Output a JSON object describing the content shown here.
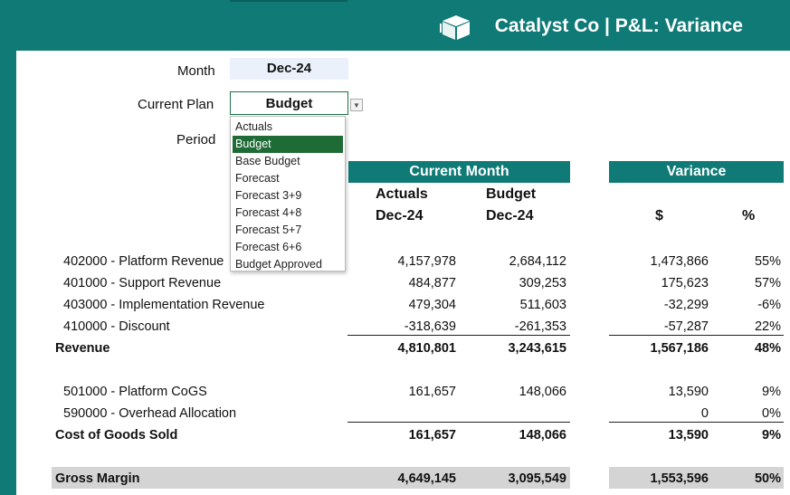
{
  "header": {
    "title": "Catalyst Co | P&L: Variance",
    "logo_icon": "building-blocks-icon"
  },
  "controls": {
    "month_label": "Month",
    "month_value": "Dec-24",
    "plan_label": "Current Plan",
    "plan_value": "Budget",
    "period_label": "Period"
  },
  "dropdown": {
    "options": [
      "Actuals",
      "Budget",
      "Base Budget",
      "Forecast",
      "Forecast 3+9",
      "Forecast 4+8",
      "Forecast 5+7",
      "Forecast 6+6",
      "Budget Approved"
    ],
    "selected": "Budget"
  },
  "table": {
    "current_month_header": "Current Month",
    "variance_header": "Variance",
    "col_actuals": "Actuals",
    "col_actuals_period": "Dec-24",
    "col_budget": "Budget",
    "col_budget_period": "Dec-24",
    "col_dollar": "$",
    "col_pct": "%",
    "rows": [
      {
        "label": "402000 - Platform Revenue",
        "actuals": "4,157,978",
        "budget": "2,684,112",
        "var": "1,473,866",
        "pct": "55%"
      },
      {
        "label": "401000 - Support Revenue",
        "actuals": "484,877",
        "budget": "309,253",
        "var": "175,623",
        "pct": "57%"
      },
      {
        "label": "403000 - Implementation Revenue",
        "actuals": "479,304",
        "budget": "511,603",
        "var": "-32,299",
        "pct": "-6%"
      },
      {
        "label": "410000 - Discount",
        "actuals": "-318,639",
        "budget": "-261,353",
        "var": "-57,287",
        "pct": "22%"
      },
      {
        "label": "Revenue",
        "actuals": "4,810,801",
        "budget": "3,243,615",
        "var": "1,567,186",
        "pct": "48%"
      },
      {
        "label": "501000 - Platform CoGS",
        "actuals": "161,657",
        "budget": "148,066",
        "var": "13,590",
        "pct": "9%"
      },
      {
        "label": "590000 - Overhead Allocation",
        "actuals": "",
        "budget": "",
        "var": "0",
        "pct": "0%"
      },
      {
        "label": "Cost of Goods Sold",
        "actuals": "161,657",
        "budget": "148,066",
        "var": "13,590",
        "pct": "9%"
      },
      {
        "label": "Gross Margin",
        "actuals": "4,649,145",
        "budget": "3,095,549",
        "var": "1,553,596",
        "pct": "50%"
      }
    ]
  },
  "colors": {
    "teal": "#0f7a76",
    "selected": "#1f6b36",
    "month_bg": "#eaf1fb",
    "gross_margin_bg": "#d4d4d4"
  }
}
